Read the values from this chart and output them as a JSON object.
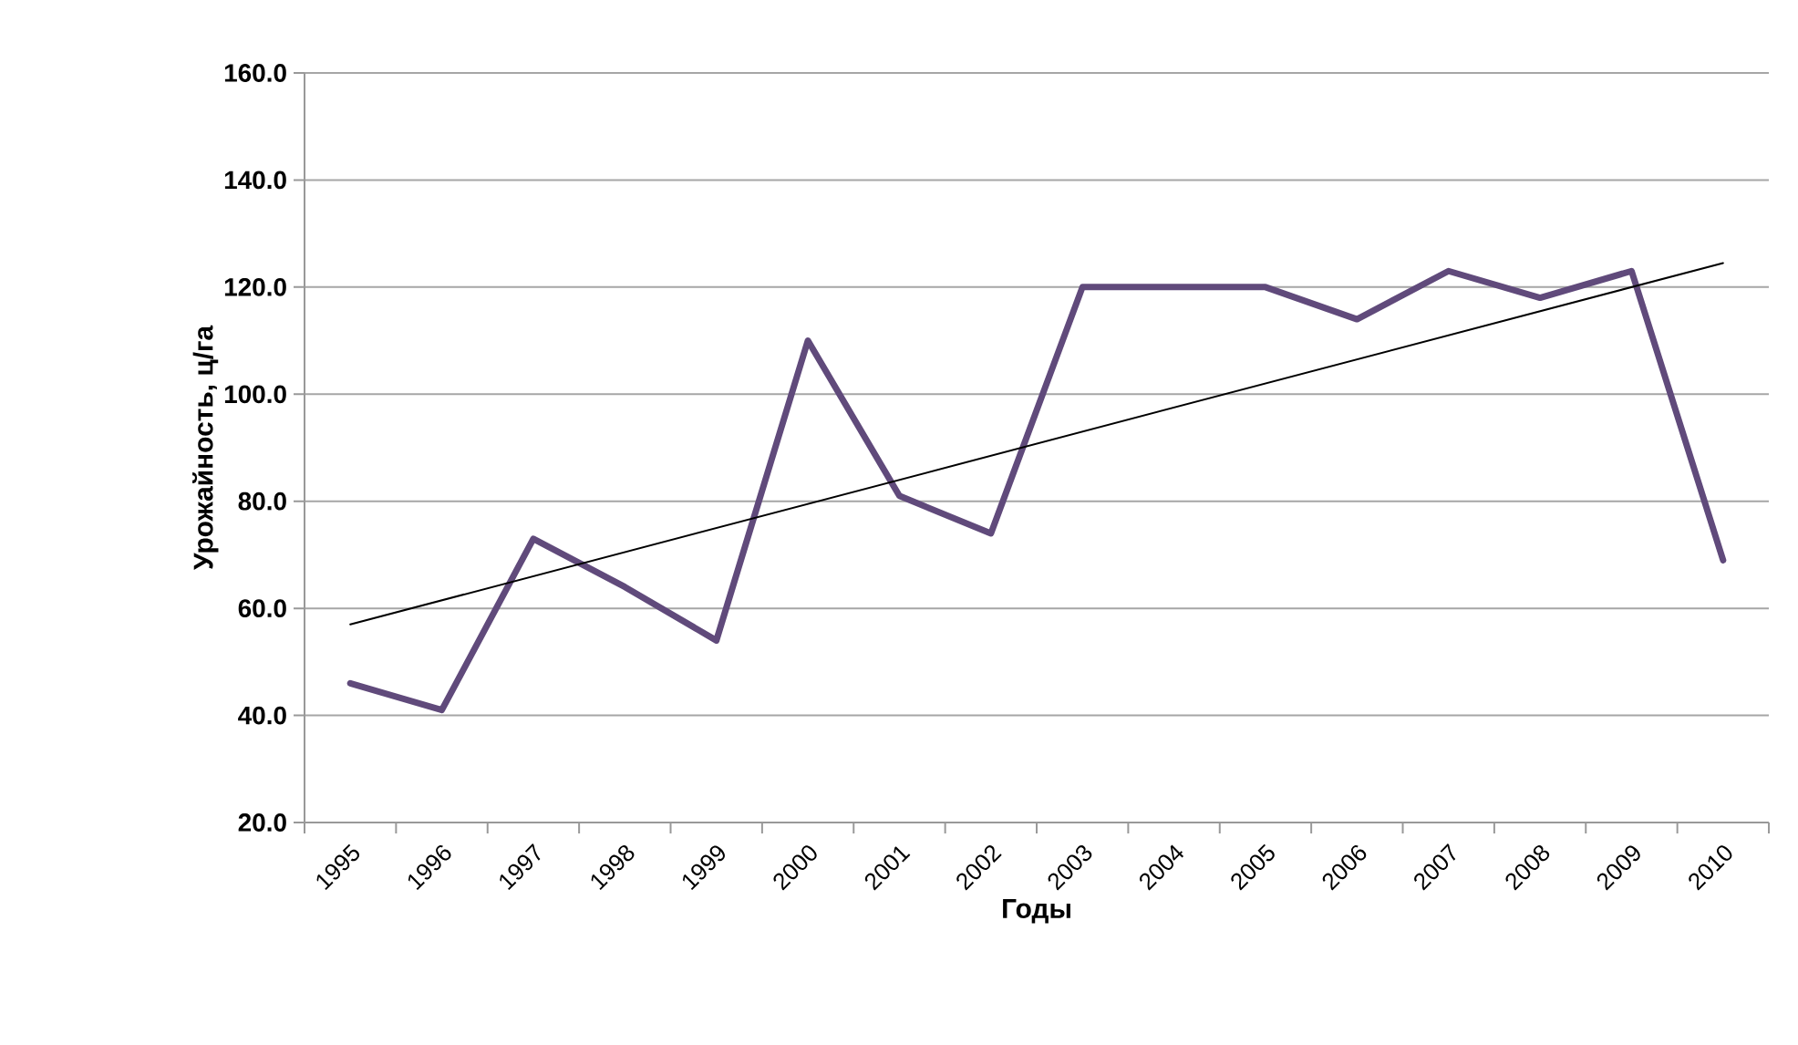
{
  "chart_data": {
    "type": "line",
    "xlabel": "Годы",
    "ylabel": "Урожайность, ц/га",
    "categories": [
      "1995",
      "1996",
      "1997",
      "1998",
      "1999",
      "2000",
      "2001",
      "2002",
      "2003",
      "2004",
      "2005",
      "2006",
      "2007",
      "2008",
      "2009",
      "2010"
    ],
    "ylim": [
      20,
      160
    ],
    "yticks": [
      {
        "value": 20,
        "label": "20.0"
      },
      {
        "value": 40,
        "label": "40.0"
      },
      {
        "value": 60,
        "label": "60.0"
      },
      {
        "value": 80,
        "label": "80.0"
      },
      {
        "value": 100,
        "label": "100.0"
      },
      {
        "value": 120,
        "label": "120.0"
      },
      {
        "value": 140,
        "label": "140.0"
      },
      {
        "value": 160,
        "label": "160.0"
      }
    ],
    "grid": "y",
    "series": [
      {
        "color": "#604a7b",
        "values": [
          46,
          41,
          73,
          64,
          54,
          110,
          81,
          74,
          120,
          120,
          120,
          114,
          123,
          118,
          123,
          69
        ]
      },
      {
        "type": "line",
        "color": "#000000",
        "values": [
          57,
          null,
          null,
          null,
          null,
          null,
          null,
          null,
          null,
          null,
          null,
          null,
          null,
          null,
          null,
          124.5
        ]
      }
    ]
  }
}
